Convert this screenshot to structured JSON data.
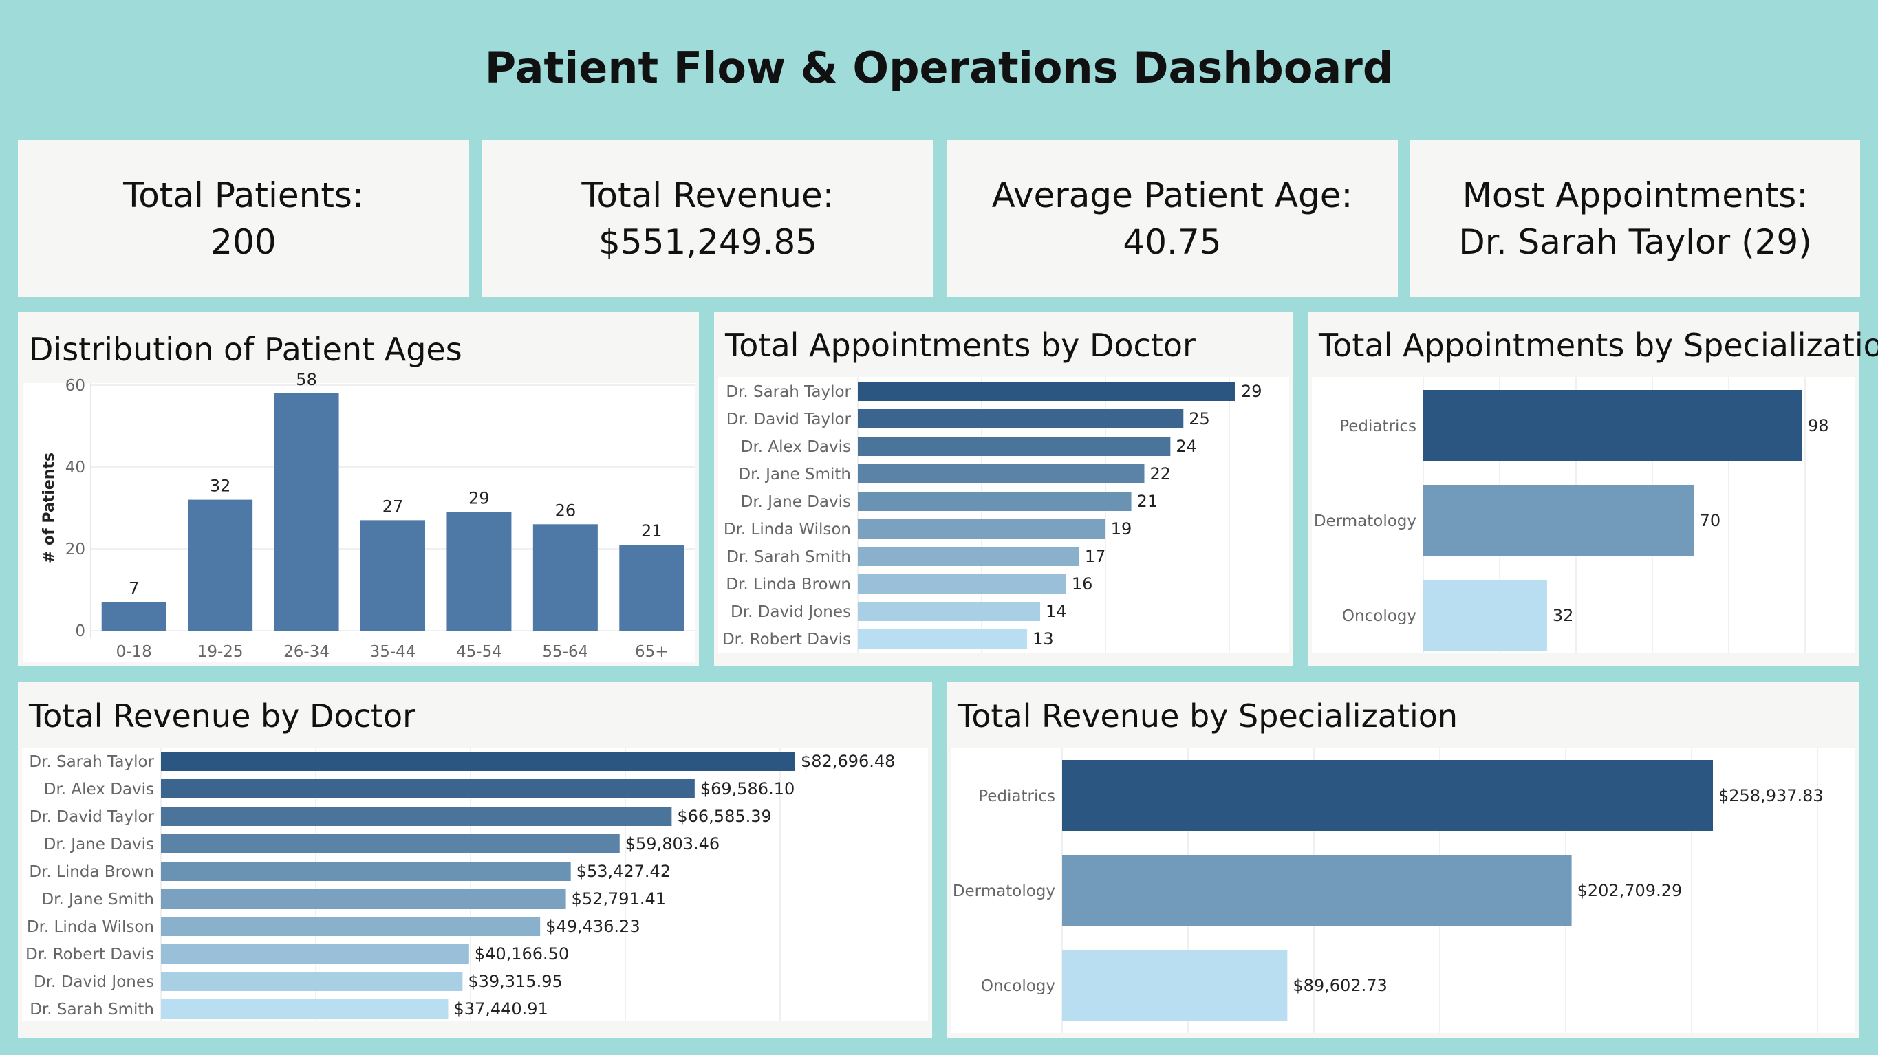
{
  "dashboard_title": "Patient Flow & Operations Dashboard",
  "kpis": [
    {
      "label": "Total Patients:",
      "value": "200"
    },
    {
      "label": "Total Revenue:",
      "value": "$551,249.85"
    },
    {
      "label": "Average Patient Age:",
      "value": "40.75"
    },
    {
      "label": "Most Appointments:",
      "value": "Dr. Sarah Taylor (29)"
    }
  ],
  "colors": {
    "background": "#9edbd9",
    "panel": "#f6f6f5",
    "bar_primary": "#4e79a7",
    "bar_dark": "#2b5682",
    "bar_light": "#b9def1"
  },
  "chart_data": [
    {
      "id": "ages",
      "type": "bar",
      "title": "Distribution of Patient Ages",
      "ylabel": "# of Patients",
      "categories": [
        "0-18",
        "19-25",
        "26-34",
        "35-44",
        "45-54",
        "55-64",
        "65+"
      ],
      "values": [
        7,
        32,
        58,
        27,
        29,
        26,
        21
      ],
      "yticks": [
        0,
        20,
        40,
        60
      ],
      "ylim": [
        0,
        60
      ],
      "grid": true
    },
    {
      "id": "appts_doctor",
      "type": "bar",
      "orientation": "horizontal",
      "title": "Total Appointments by Doctor",
      "categories": [
        "Dr. Sarah Taylor",
        "Dr. David Taylor",
        "Dr. Alex Davis",
        "Dr. Jane Smith",
        "Dr. Jane Davis",
        "Dr. Linda Wilson",
        "Dr. Sarah Smith",
        "Dr. Linda Brown",
        "Dr. David Jones",
        "Dr. Robert Davis"
      ],
      "values": [
        29,
        25,
        24,
        22,
        21,
        19,
        17,
        16,
        14,
        13
      ],
      "labels": [
        "29",
        "25",
        "24",
        "22",
        "21",
        "19",
        "17",
        "16",
        "14",
        "13"
      ]
    },
    {
      "id": "appts_spec",
      "type": "bar",
      "orientation": "horizontal",
      "title": "Total Appointments by Specialization",
      "categories": [
        "Pediatrics",
        "Dermatology",
        "Oncology"
      ],
      "values": [
        98,
        70,
        32
      ],
      "labels": [
        "98",
        "70",
        "32"
      ]
    },
    {
      "id": "rev_doctor",
      "type": "bar",
      "orientation": "horizontal",
      "title": "Total Revenue by Doctor",
      "categories": [
        "Dr. Sarah Taylor",
        "Dr. Alex Davis",
        "Dr. David Taylor",
        "Dr. Jane Davis",
        "Dr. Linda Brown",
        "Dr. Jane Smith",
        "Dr. Linda Wilson",
        "Dr. Robert Davis",
        "Dr. David Jones",
        "Dr. Sarah Smith"
      ],
      "values": [
        82696.48,
        69586.1,
        66585.39,
        59803.46,
        53427.42,
        52791.41,
        49436.23,
        40166.5,
        39315.95,
        37440.91
      ],
      "labels": [
        "$82,696.48",
        "$69,586.10",
        "$66,585.39",
        "$59,803.46",
        "$53,427.42",
        "$52,791.41",
        "$49,436.23",
        "$40,166.50",
        "$39,315.95",
        "$37,440.91"
      ]
    },
    {
      "id": "rev_spec",
      "type": "bar",
      "orientation": "horizontal",
      "title": "Total Revenue by Specialization",
      "categories": [
        "Pediatrics",
        "Dermatology",
        "Oncology"
      ],
      "values": [
        258937.83,
        202709.29,
        89602.73
      ],
      "labels": [
        "$258,937.83",
        "$202,709.29",
        "$89,602.73"
      ]
    }
  ]
}
